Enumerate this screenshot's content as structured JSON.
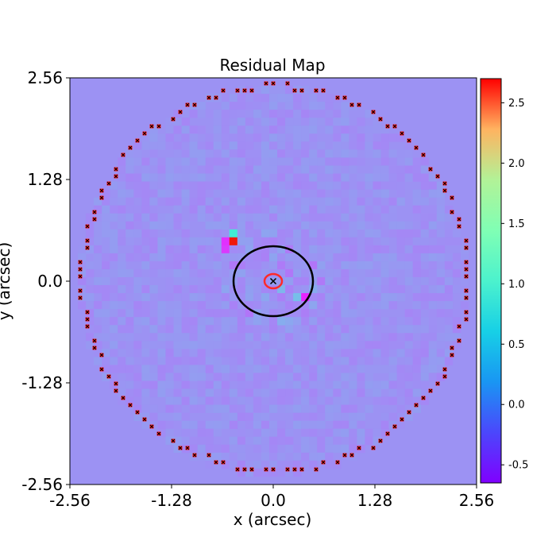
{
  "chart_data": {
    "type": "heatmap",
    "title": "Residual Map",
    "xlabel": "x (arcsec)",
    "ylabel": "y (arcsec)",
    "xlim": [
      -2.56,
      2.56
    ],
    "ylim": [
      -2.56,
      2.56
    ],
    "x_ticks": [
      "-2.56",
      "-1.28",
      "0.0",
      "1.28",
      "2.56"
    ],
    "y_ticks": [
      "2.56",
      "1.28",
      "0.0",
      "-1.28",
      "-2.56"
    ],
    "colorbar": {
      "colormap": "rainbow",
      "range": [
        -0.65,
        2.7
      ],
      "ticks": [
        "2.5",
        "2.0",
        "1.5",
        "1.0",
        "0.5",
        "0.0",
        "-0.5"
      ],
      "tick_values": [
        2.5,
        2.0,
        1.5,
        1.0,
        0.5,
        0.0,
        -0.5
      ]
    },
    "background_value": 0.0,
    "mask_radius": 2.45,
    "notable_pixels": [
      {
        "x": -0.46,
        "y": 0.46,
        "value": 2.6
      },
      {
        "x": -0.46,
        "y": 0.56,
        "value": 0.6
      },
      {
        "x": -0.56,
        "y": 0.46,
        "value": -0.45
      },
      {
        "x": -0.56,
        "y": 0.36,
        "value": -0.4
      },
      {
        "x": 0.36,
        "y": -0.16,
        "value": -0.5
      },
      {
        "x": 0.26,
        "y": -0.16,
        "value": 0.25
      },
      {
        "x": 0.06,
        "y": -0.06,
        "value": 0.2
      }
    ],
    "critical_curves": [
      {
        "type": "ellipse",
        "center": [
          0.0,
          0.0
        ],
        "semi_axes": [
          0.5,
          0.44
        ],
        "color": "#000000"
      }
    ],
    "caustics": [
      {
        "type": "ellipse",
        "center": [
          0.0,
          0.0
        ],
        "semi_axes": [
          0.11,
          0.09
        ],
        "color": "#ff2a2a"
      }
    ],
    "source_position": {
      "x": 0.0,
      "y": 0.0,
      "marker": "x"
    },
    "border_radius": 2.42
  }
}
